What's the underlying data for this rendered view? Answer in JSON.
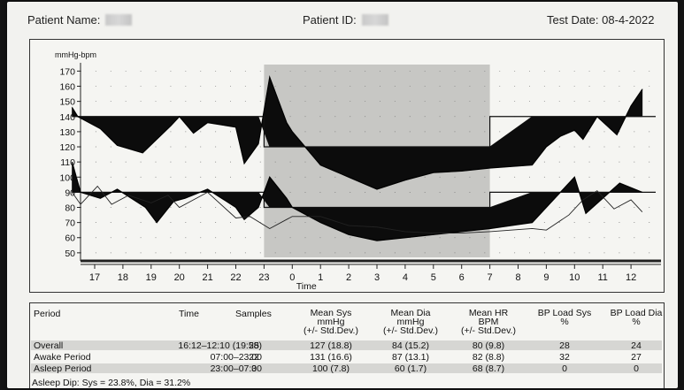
{
  "header": {
    "patient_name_label": "Patient Name:",
    "patient_id_label": "Patient ID:",
    "test_date_label": "Test Date:",
    "test_date": "08-4-2022"
  },
  "chart_data": {
    "type": "line",
    "ylabel": "mmHg-bpm",
    "xlabel": "Time",
    "ylim": [
      47,
      172
    ],
    "yticks": [
      50,
      60,
      70,
      80,
      90,
      100,
      110,
      120,
      130,
      140,
      150,
      160,
      170
    ],
    "xticks": [
      "17",
      "18",
      "19",
      "20",
      "21",
      "22",
      "23",
      "0",
      "1",
      "2",
      "3",
      "4",
      "5",
      "6",
      "7",
      "8",
      "9",
      "10",
      "11",
      "12"
    ],
    "sleep_period": [
      "23",
      "7"
    ],
    "systolic_threshold": {
      "awake": 140,
      "asleep": 120
    },
    "diastolic_threshold": {
      "awake": 90,
      "asleep": 80
    },
    "series": [
      {
        "name": "Sys",
        "x": [
          -0.8,
          -0.6,
          0.2,
          0.8,
          1.7,
          2.2,
          2.7,
          3.0,
          3.5,
          4.0,
          5.0,
          5.3,
          5.8,
          6.2,
          6.8,
          7.0,
          8.0,
          9.0,
          10.0,
          11.0,
          12.0,
          13.0,
          14.0,
          15.5,
          16.0,
          16.5,
          17.0,
          17.3,
          17.8,
          18.5,
          19.0,
          19.4
        ],
        "y": [
          146,
          140,
          132,
          121,
          116,
          125,
          134,
          140,
          129,
          136,
          133,
          109,
          122,
          166,
          136,
          130,
          108,
          100,
          92,
          98,
          103,
          104,
          106,
          108,
          120,
          127,
          131,
          125,
          140,
          128,
          147,
          158
        ]
      },
      {
        "name": "Dia",
        "x": [
          -0.8,
          -0.5,
          0.2,
          0.8,
          1.8,
          2.2,
          2.8,
          3.2,
          4.0,
          4.5,
          5.0,
          5.3,
          5.8,
          6.2,
          6.8,
          7.0,
          8.0,
          9.0,
          10.0,
          11.0,
          12.0,
          13.0,
          14.0,
          15.5,
          16.0,
          16.5,
          17.0,
          17.4,
          18.0,
          18.6,
          19.4
        ],
        "y": [
          110,
          90,
          86,
          92,
          80,
          70,
          84,
          86,
          92,
          86,
          80,
          72,
          80,
          100,
          86,
          80,
          70,
          62,
          58,
          60,
          62,
          64,
          66,
          70,
          80,
          90,
          100,
          76,
          86,
          96,
          90
        ]
      },
      {
        "name": "HR",
        "x": [
          -0.8,
          -0.5,
          0.1,
          0.6,
          1.2,
          2.0,
          2.6,
          3.0,
          3.6,
          4.0,
          5.0,
          5.5,
          6.2,
          6.8,
          7.0,
          8.0,
          9.0,
          10.0,
          11.0,
          12.0,
          13.0,
          14.0,
          15.5,
          16.0,
          16.8,
          17.3,
          17.8,
          18.4,
          19.0,
          19.4
        ],
        "y": [
          90,
          82,
          94,
          82,
          88,
          83,
          88,
          80,
          86,
          90,
          73,
          74,
          66,
          72,
          74,
          74,
          68,
          67,
          64,
          63,
          63,
          64,
          66,
          65,
          75,
          85,
          91,
          79,
          85,
          77
        ]
      }
    ]
  },
  "table": {
    "headers": {
      "period": "Period",
      "time": "Time",
      "samples": "Samples",
      "sys": [
        "Mean Sys",
        "mmHg",
        "(+/- Std.Dev.)"
      ],
      "dia": [
        "Mean Dia",
        "mmHg",
        "(+/- Std.Dev.)"
      ],
      "hr": [
        "Mean HR",
        "BPM",
        "(+/- Std.Dev.)"
      ],
      "load_sys": [
        "BP Load Sys",
        "%"
      ],
      "load_dia": [
        "BP Load Dia",
        "%"
      ]
    },
    "rows": [
      {
        "period": "Overall",
        "time": "16:12–12:10 (19:58)",
        "samples": "25",
        "sys": "127 (18.8)",
        "dia": "84 (15.2)",
        "hr": "80 (9.8)",
        "load_sys": "28",
        "load_dia": "24"
      },
      {
        "period": "Awake Period",
        "time": "07:00–23:00",
        "samples": "22",
        "sys": "131 (16.6)",
        "dia": "87 (13.1)",
        "hr": "82 (8.8)",
        "load_sys": "32",
        "load_dia": "27"
      },
      {
        "period": "Asleep Period",
        "time": "23:00–07:00",
        "samples": "3",
        "sys": "100 (7.8)",
        "dia": "60 (1.7)",
        "hr": "68 (8.7)",
        "load_sys": "0",
        "load_dia": "0"
      }
    ],
    "summary": "Asleep Dip: Sys = 23.8%, Dia = 31.2%"
  }
}
